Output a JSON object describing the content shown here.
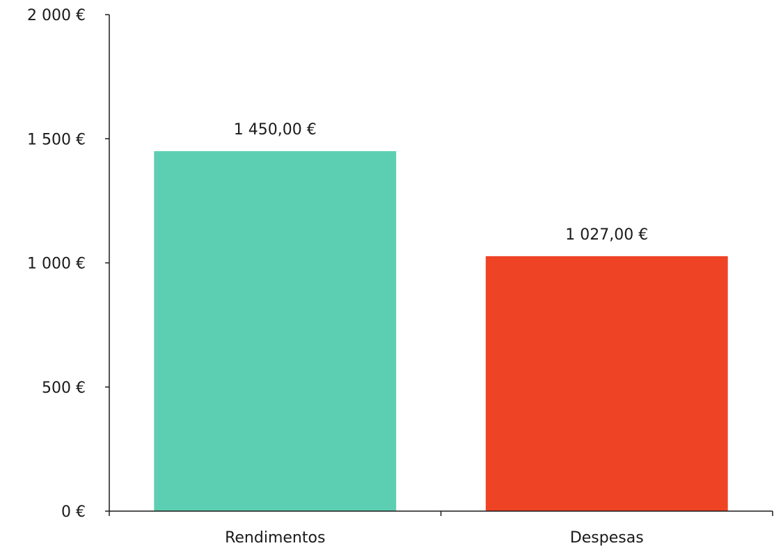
{
  "chart_data": {
    "type": "bar",
    "title": "",
    "xlabel": "",
    "ylabel": "",
    "categories": [
      "Rendimentos",
      "Despesas"
    ],
    "values": [
      1450,
      1027
    ],
    "value_labels": [
      "1 450,00 €",
      "1 027,00 €"
    ],
    "colors": [
      "#5ccfb2",
      "#ef4325"
    ],
    "ylim": [
      0,
      2000
    ],
    "y_ticks": [
      0,
      500,
      1000,
      1500,
      2000
    ],
    "y_tick_labels": [
      "0 €",
      "500 €",
      "1 000 €",
      "1 500 €",
      "2 000 €"
    ],
    "grid": false,
    "legend": "none"
  }
}
